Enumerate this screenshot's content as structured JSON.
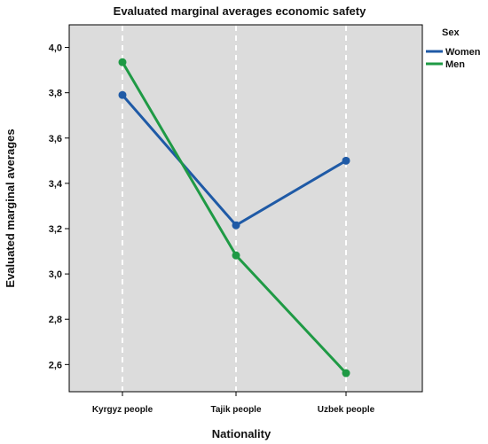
{
  "chart_data": {
    "type": "line",
    "title": "Evaluated marginal averages economic safety",
    "xlabel": "Nationality",
    "ylabel": "Evaluated marginal averages",
    "categories": [
      "Kyrgyz people",
      "Tajik people",
      "Uzbek people"
    ],
    "series": [
      {
        "name": "Women",
        "color": "#1f5aa6",
        "values": [
          3.79,
          3.215,
          3.5
        ]
      },
      {
        "name": "Men",
        "color": "#1f9a45",
        "values": [
          3.935,
          3.082,
          2.562
        ]
      }
    ],
    "ylim": [
      2.48,
      4.1
    ],
    "yticks": [
      "4,0",
      "3,8",
      "3,6",
      "3,4",
      "3,2",
      "3,0",
      "2,8",
      "2,6"
    ],
    "ytick_values": [
      4.0,
      3.8,
      3.6,
      3.4,
      3.2,
      3.0,
      2.8,
      2.6
    ],
    "grid": "vertical dashed at categories",
    "legend": {
      "title": "Sex",
      "placement": "top-right outside"
    },
    "plot_background": "#dcdcdc"
  }
}
